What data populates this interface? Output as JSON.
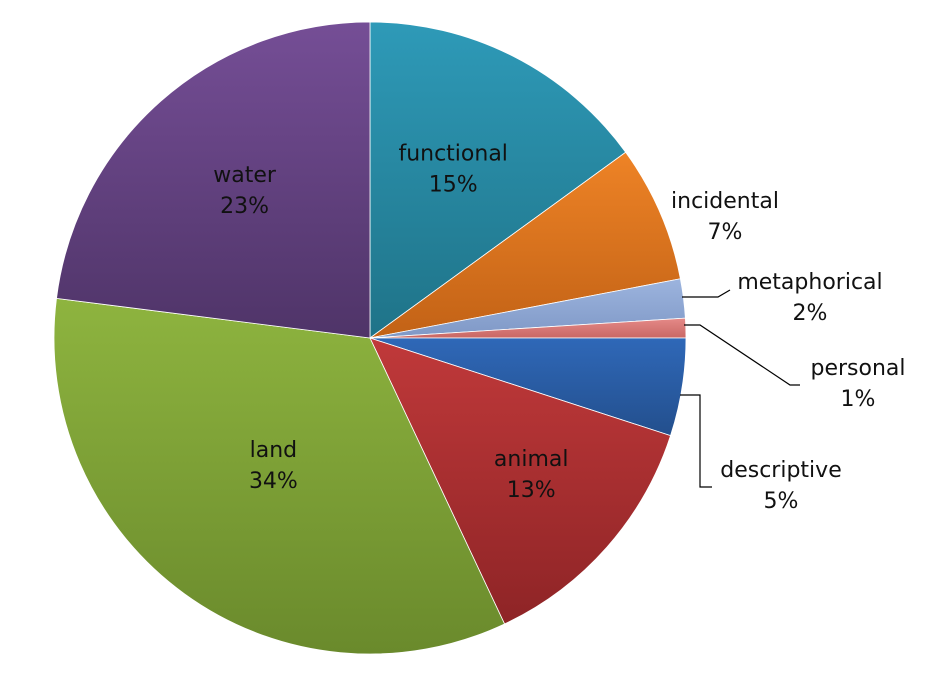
{
  "chart_data": {
    "type": "pie",
    "start_angle_deg": 0,
    "direction": "clockwise",
    "slices": [
      {
        "label": "functional",
        "value": 15,
        "display": "15%",
        "color": "#2E9AB8",
        "color_dark": "#1F7388"
      },
      {
        "label": "incidental",
        "value": 7,
        "display": "7%",
        "color": "#EE8326",
        "color_dark": "#C26216"
      },
      {
        "label": "metaphorical",
        "value": 2,
        "display": "2%",
        "color": "#9CB4DE",
        "color_dark": "#7F98C6"
      },
      {
        "label": "personal",
        "value": 1,
        "display": "1%",
        "color": "#E58A88",
        "color_dark": "#C96764"
      },
      {
        "label": "descriptive",
        "value": 5,
        "display": "5%",
        "color": "#2F68B8",
        "color_dark": "#234F8D"
      },
      {
        "label": "animal",
        "value": 13,
        "display": "13%",
        "color": "#C0393A",
        "color_dark": "#8E2426"
      },
      {
        "label": "land",
        "value": 34,
        "display": "34%",
        "color": "#8EB43F",
        "color_dark": "#6A8A2C"
      },
      {
        "label": "water",
        "value": 23,
        "display": "23%",
        "color": "#754E96",
        "color_dark": "#4F3468"
      }
    ],
    "legend": "none"
  }
}
